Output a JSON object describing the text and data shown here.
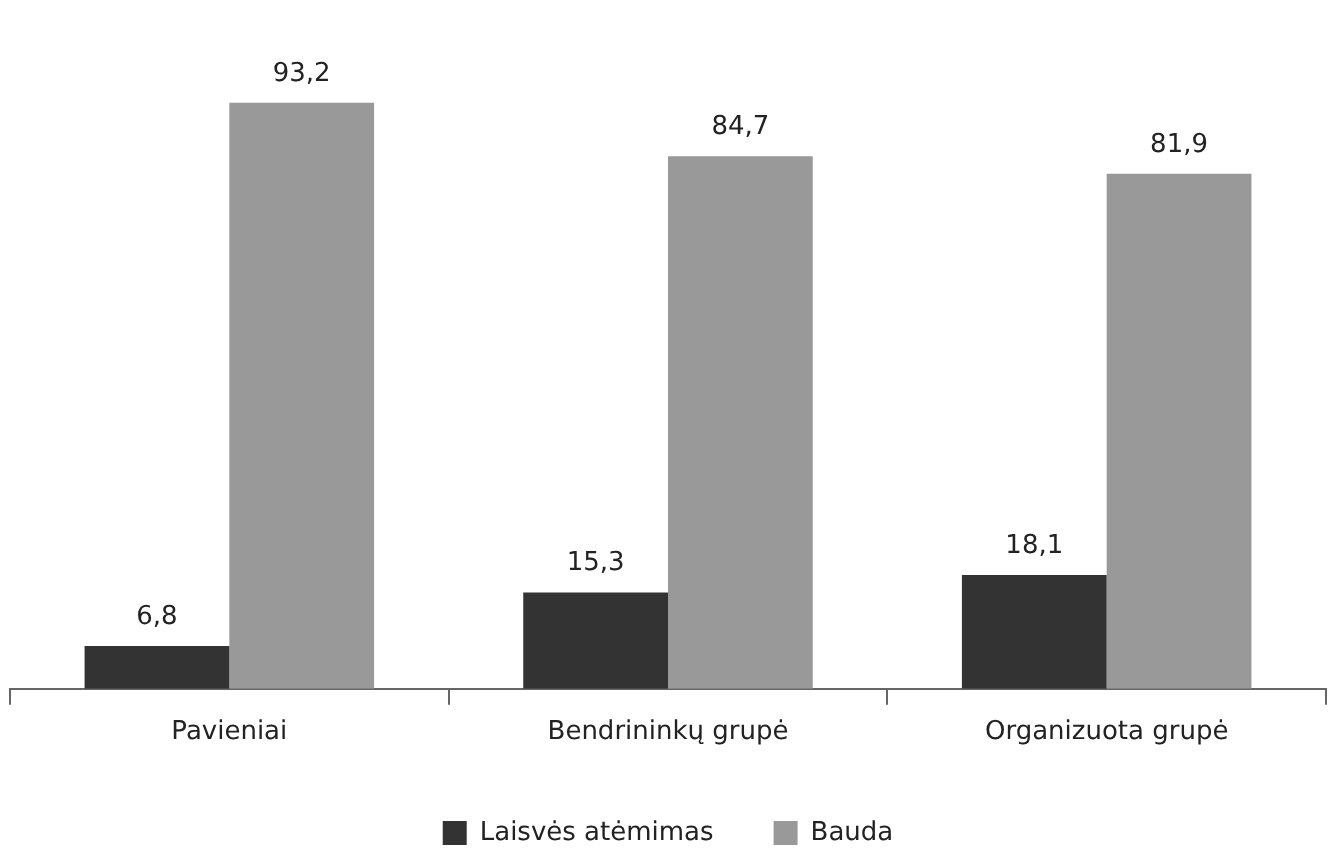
{
  "chart_data": {
    "type": "bar",
    "categories": [
      "Pavieniai",
      "Bendrininkų grupė",
      "Organizuota grupė"
    ],
    "series": [
      {
        "name": "Laisvės atėmimas",
        "color": "#333333",
        "values": [
          6.8,
          15.3,
          18.1
        ],
        "value_labels": [
          "6,8",
          "15,3",
          "18,1"
        ]
      },
      {
        "name": "Bauda",
        "color": "#999999",
        "values": [
          93.2,
          84.7,
          81.9
        ],
        "value_labels": [
          "93,2",
          "84,7",
          "81,9"
        ]
      }
    ],
    "legend": "bottom",
    "grid": false,
    "tick_labels": "x"
  }
}
